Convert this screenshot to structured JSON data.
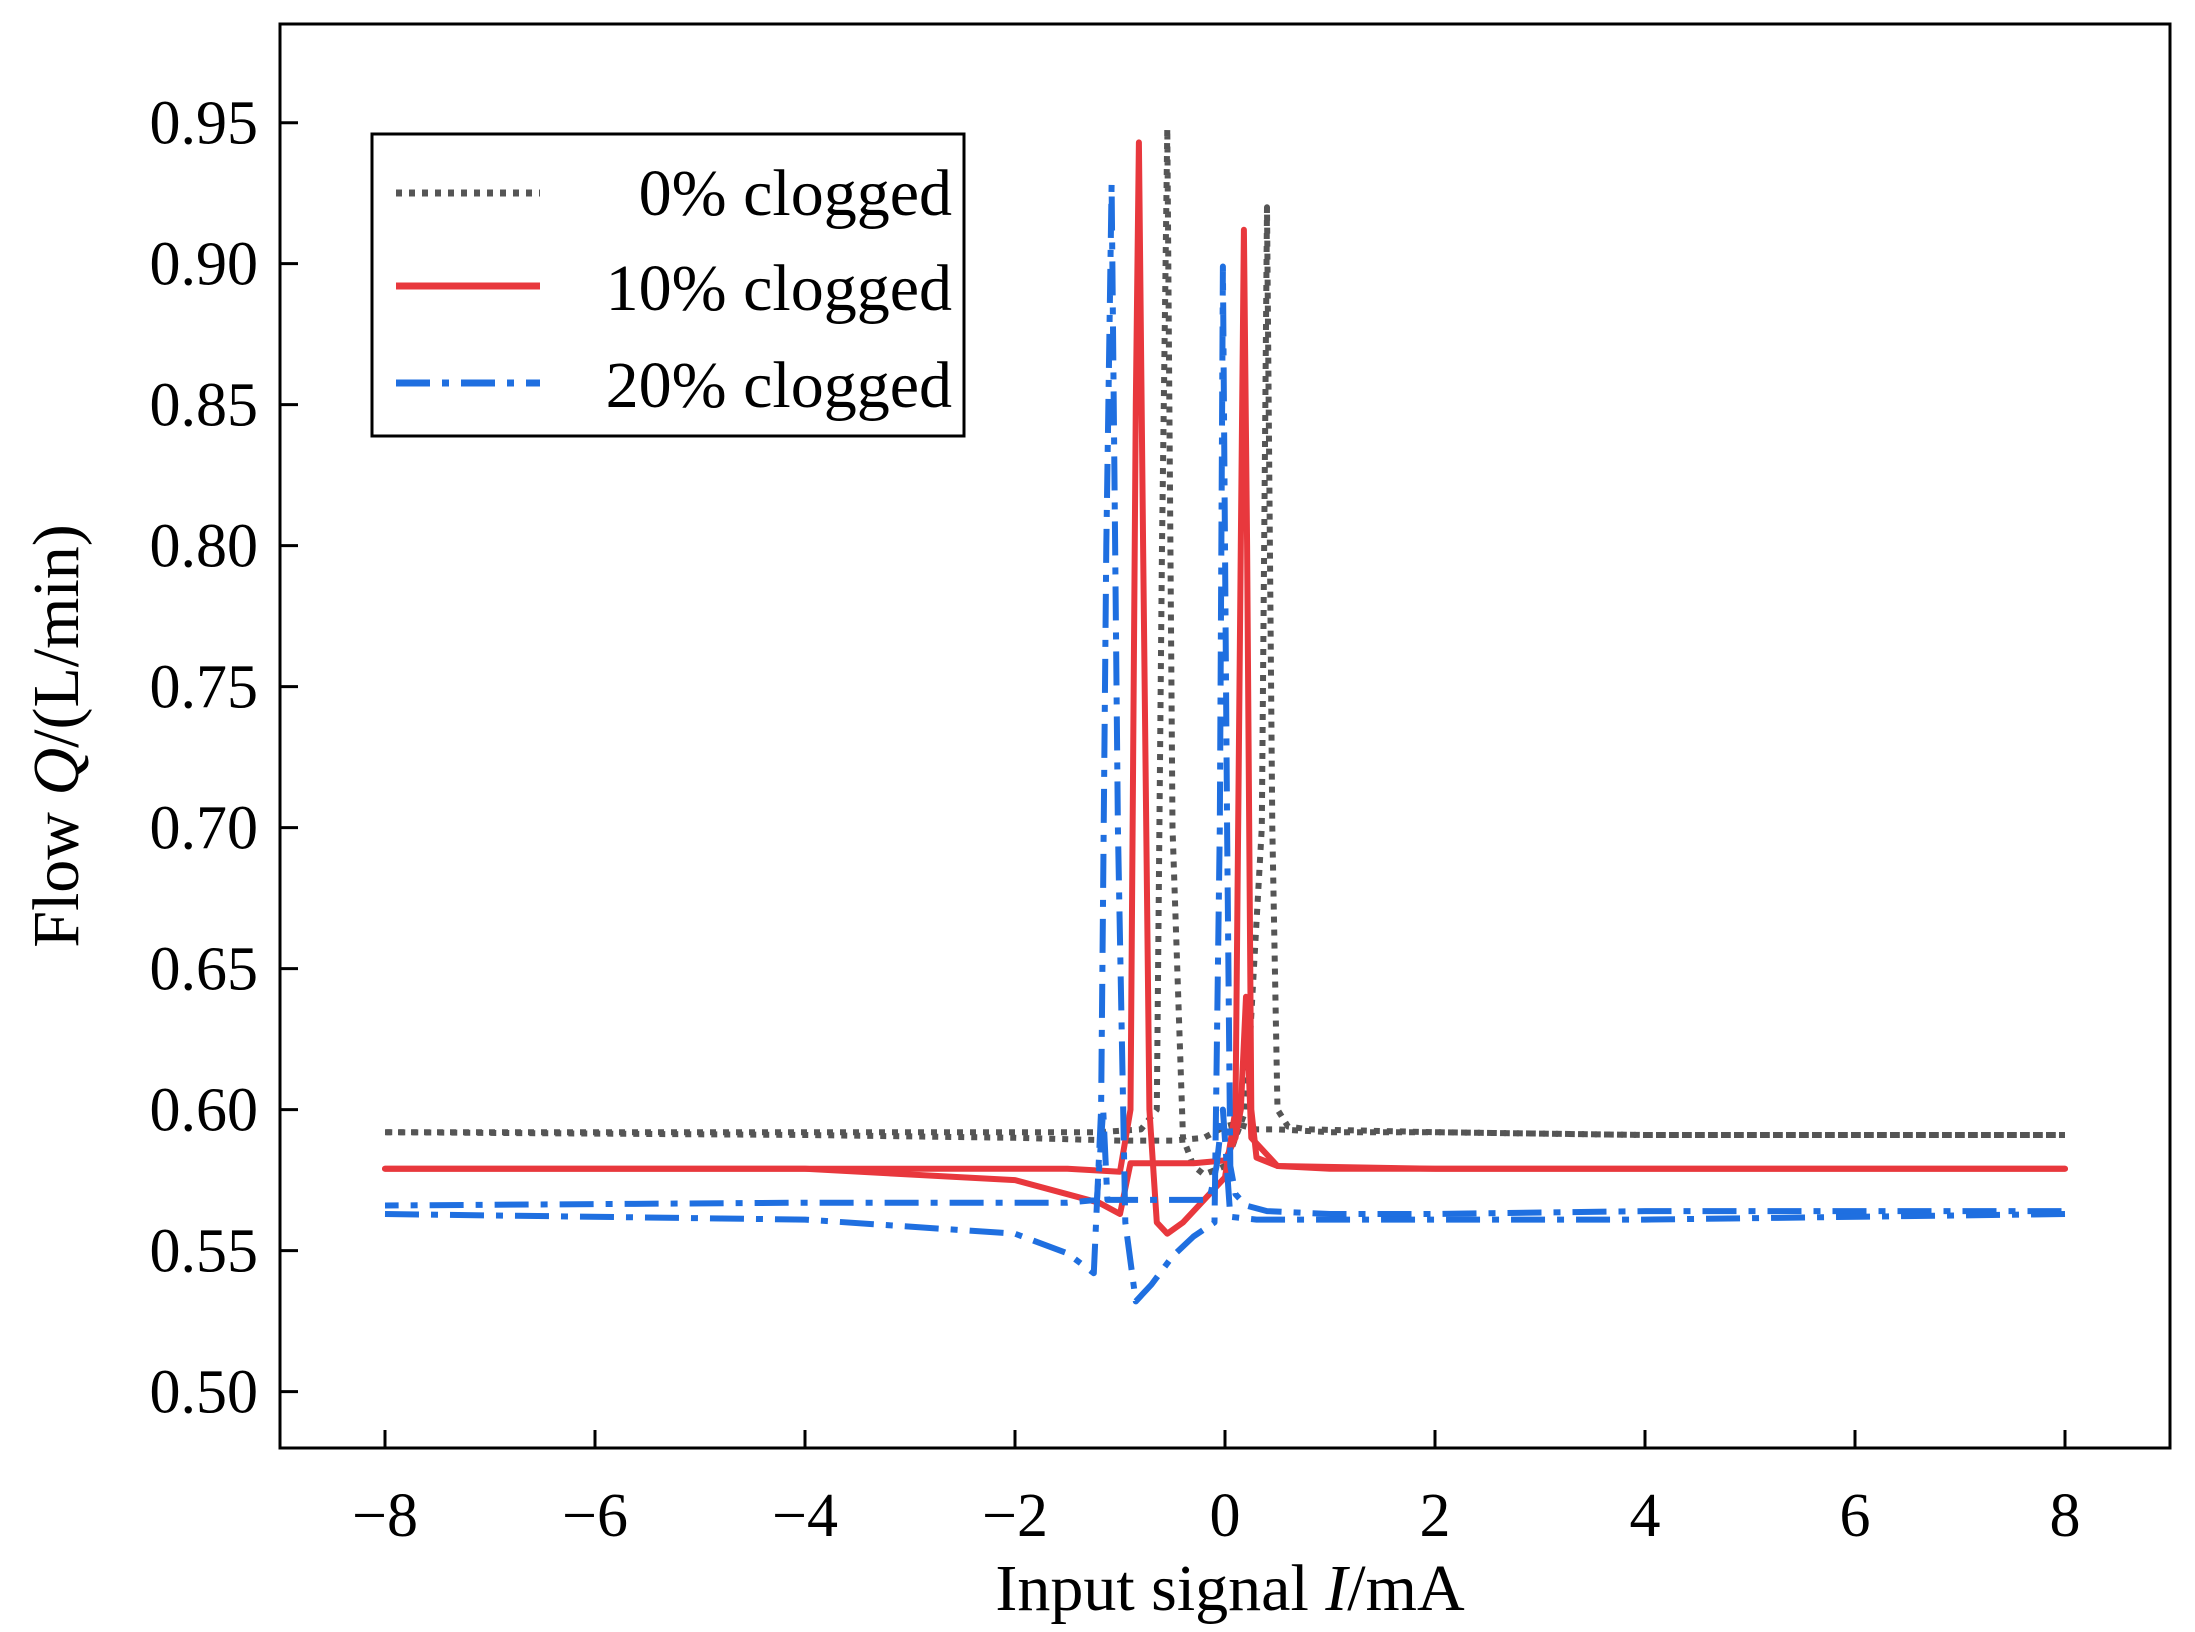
{
  "chart_data": {
    "type": "line",
    "title": "",
    "xlabel": "Input signal I/mA",
    "xlabel_parts": {
      "prefix": "Input signal ",
      "var": "I",
      "suffix": "/mA"
    },
    "ylabel": "Flow Q/(L/min)",
    "ylabel_parts": {
      "prefix": "Flow ",
      "var": "Q",
      "suffix": "/(L/min)"
    },
    "xlim": [
      -9,
      9
    ],
    "ylim": [
      0.48,
      0.985
    ],
    "xticks": [
      -8,
      -6,
      -4,
      -2,
      0,
      2,
      4,
      6,
      8
    ],
    "xtick_labels": [
      "−8",
      "−6",
      "−4",
      "−2",
      "0",
      "2",
      "4",
      "6",
      "8"
    ],
    "yticks": [
      0.5,
      0.55,
      0.6,
      0.65,
      0.7,
      0.75,
      0.8,
      0.85,
      0.9,
      0.95
    ],
    "ytick_labels": [
      "0.50",
      "0.55",
      "0.60",
      "0.65",
      "0.70",
      "0.75",
      "0.80",
      "0.85",
      "0.90",
      "0.95"
    ],
    "grid": false,
    "legend_position": "top-left",
    "series": [
      {
        "name": "0% clogged",
        "color": "#555555",
        "style": "dotted",
        "branches": [
          {
            "x": [
              -8,
              -4,
              -2,
              -1.2,
              -0.8,
              -0.65,
              -0.6,
              -0.55,
              -0.5,
              -0.4,
              -0.3,
              -0.2,
              0,
              0.2,
              0.35,
              0.4,
              0.45,
              0.5,
              0.6,
              0.8,
              2,
              4,
              8
            ],
            "y": [
              0.592,
              0.592,
              0.592,
              0.592,
              0.593,
              0.6,
              0.8,
              0.948,
              0.7,
              0.59,
              0.58,
              0.577,
              0.58,
              0.6,
              0.7,
              0.92,
              0.7,
              0.6,
              0.594,
              0.593,
              0.592,
              0.591,
              0.591
            ]
          },
          {
            "x": [
              8,
              4,
              2,
              1,
              0.5,
              0.3,
              0.1,
              0,
              -0.2,
              -0.5,
              -1,
              -2,
              -4,
              -8
            ],
            "y": [
              0.591,
              0.591,
              0.592,
              0.592,
              0.593,
              0.593,
              0.595,
              0.594,
              0.59,
              0.589,
              0.589,
              0.59,
              0.591,
              0.592
            ]
          }
        ]
      },
      {
        "name": "10% clogged",
        "color": "#E8383D",
        "style": "solid",
        "branches": [
          {
            "x": [
              -8,
              -4,
              -2,
              -1.5,
              -1.0,
              -0.9,
              -0.85,
              -0.82,
              -0.78,
              -0.72,
              -0.65,
              -0.55,
              -0.4,
              -0.2,
              0,
              0.1,
              0.15,
              0.18,
              0.21,
              0.25,
              0.3,
              0.5,
              1,
              2,
              4,
              8
            ],
            "y": [
              0.579,
              0.579,
              0.579,
              0.579,
              0.578,
              0.6,
              0.85,
              0.943,
              0.8,
              0.6,
              0.56,
              0.556,
              0.56,
              0.568,
              0.576,
              0.6,
              0.8,
              0.912,
              0.8,
              0.6,
              0.583,
              0.58,
              0.579,
              0.579,
              0.579,
              0.579
            ]
          },
          {
            "x": [
              8,
              4,
              2,
              0.5,
              0.25,
              0.2,
              0.15,
              0.1,
              0.05,
              0,
              -0.3,
              -0.6,
              -0.9,
              -1.0,
              -1.2,
              -2,
              -4,
              -8
            ],
            "y": [
              0.579,
              0.579,
              0.579,
              0.58,
              0.59,
              0.64,
              0.6,
              0.59,
              0.586,
              0.582,
              0.581,
              0.581,
              0.581,
              0.563,
              0.567,
              0.575,
              0.579,
              0.579
            ]
          }
        ]
      },
      {
        "name": "20% clogged",
        "color": "#1F6FE0",
        "style": "dashdot",
        "branches": [
          {
            "x": [
              -8,
              -4,
              -2,
              -1.5,
              -1.25,
              -1.18,
              -1.13,
              -1.08,
              -1.02,
              -0.95,
              -0.85,
              -0.7,
              -0.5,
              -0.3,
              -0.1,
              -0.05,
              -0.02,
              0.02,
              0.05,
              0.1,
              0.2,
              0.4,
              1,
              2,
              4,
              8
            ],
            "y": [
              0.563,
              0.561,
              0.556,
              0.549,
              0.542,
              0.6,
              0.8,
              0.928,
              0.7,
              0.56,
              0.532,
              0.538,
              0.548,
              0.555,
              0.56,
              0.7,
              0.899,
              0.7,
              0.58,
              0.57,
              0.566,
              0.564,
              0.563,
              0.563,
              0.564,
              0.564
            ]
          },
          {
            "x": [
              8,
              4,
              2,
              1,
              0.3,
              0.05,
              -0.02,
              -0.08,
              -0.15,
              -0.3,
              -0.6,
              -1.0,
              -1.12,
              -1.16,
              -1.22,
              -1.5,
              -2,
              -4,
              -8
            ],
            "y": [
              0.563,
              0.561,
              0.561,
              0.561,
              0.561,
              0.562,
              0.6,
              0.58,
              0.568,
              0.568,
              0.568,
              0.568,
              0.568,
              0.6,
              0.568,
              0.567,
              0.567,
              0.567,
              0.566
            ]
          }
        ]
      }
    ]
  }
}
